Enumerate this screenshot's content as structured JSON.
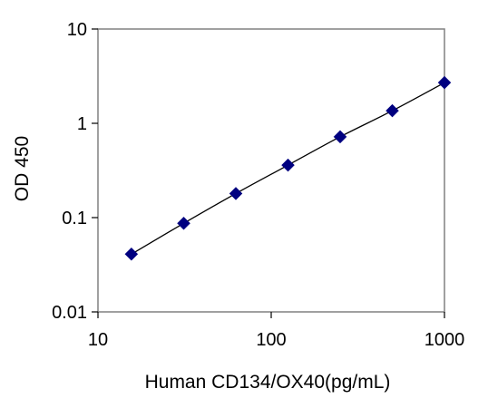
{
  "chart_data": {
    "type": "scatter",
    "title": "",
    "xlabel": "Human CD134/OX40(pg/mL)",
    "ylabel": "OD 450",
    "xscale": "log",
    "yscale": "log",
    "xlim": [
      10,
      1000
    ],
    "ylim": [
      0.01,
      10
    ],
    "x_ticks": [
      10,
      100,
      1000
    ],
    "x_tick_labels": [
      "10",
      "100",
      "1000"
    ],
    "y_ticks": [
      0.01,
      0.1,
      1,
      10
    ],
    "y_tick_labels": [
      "0.01",
      "0.1",
      "1",
      "10"
    ],
    "grid": false,
    "legend": "none",
    "marker": "diamond",
    "trendline": true,
    "series": [
      {
        "x": [
          15.6,
          31.25,
          62.5,
          125,
          250,
          500,
          1000
        ],
        "y": [
          0.041,
          0.087,
          0.18,
          0.36,
          0.72,
          1.36,
          2.7
        ]
      }
    ]
  },
  "colors": {
    "marker": "#000080",
    "line": "#000000",
    "frame": "#808080",
    "background": "#ffffff"
  }
}
